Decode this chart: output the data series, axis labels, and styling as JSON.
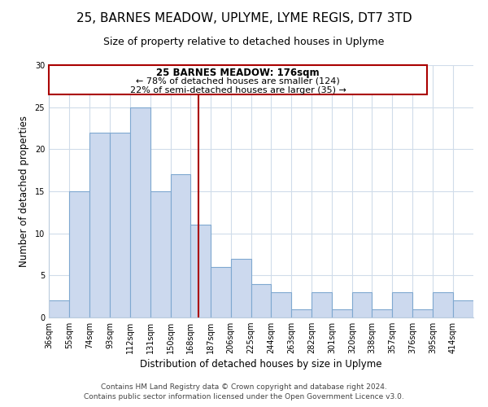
{
  "title": "25, BARNES MEADOW, UPLYME, LYME REGIS, DT7 3TD",
  "subtitle": "Size of property relative to detached houses in Uplyme",
  "xlabel": "Distribution of detached houses by size in Uplyme",
  "ylabel": "Number of detached properties",
  "bar_values": [
    2,
    15,
    22,
    22,
    25,
    15,
    17,
    11,
    6,
    7,
    4,
    3,
    1,
    3,
    1,
    3,
    1,
    3,
    1,
    3,
    2
  ],
  "bin_edges": [
    36,
    55,
    74,
    93,
    112,
    131,
    150,
    168,
    187,
    206,
    225,
    244,
    263,
    282,
    301,
    320,
    338,
    357,
    376,
    395,
    414,
    433
  ],
  "tick_labels": [
    "36sqm",
    "55sqm",
    "74sqm",
    "93sqm",
    "112sqm",
    "131sqm",
    "150sqm",
    "168sqm",
    "187sqm",
    "206sqm",
    "225sqm",
    "244sqm",
    "263sqm",
    "282sqm",
    "301sqm",
    "320sqm",
    "338sqm",
    "357sqm",
    "376sqm",
    "395sqm",
    "414sqm"
  ],
  "bar_color": "#ccd9ee",
  "bar_edge_color": "#7fa8d0",
  "grid_color": "#d0dcea",
  "red_line_x": 176,
  "ylim": [
    0,
    30
  ],
  "yticks": [
    0,
    5,
    10,
    15,
    20,
    25,
    30
  ],
  "annotation_title": "25 BARNES MEADOW: 176sqm",
  "annotation_line1": "← 78% of detached houses are smaller (124)",
  "annotation_line2": "22% of semi-detached houses are larger (35) →",
  "annotation_box_color": "#ffffff",
  "annotation_border_color": "#aa0000",
  "footer_line1": "Contains HM Land Registry data © Crown copyright and database right 2024.",
  "footer_line2": "Contains public sector information licensed under the Open Government Licence v3.0.",
  "title_fontsize": 11,
  "subtitle_fontsize": 9,
  "axis_label_fontsize": 8.5,
  "tick_fontsize": 7,
  "annotation_title_fontsize": 8.5,
  "annotation_text_fontsize": 8,
  "footer_fontsize": 6.5
}
